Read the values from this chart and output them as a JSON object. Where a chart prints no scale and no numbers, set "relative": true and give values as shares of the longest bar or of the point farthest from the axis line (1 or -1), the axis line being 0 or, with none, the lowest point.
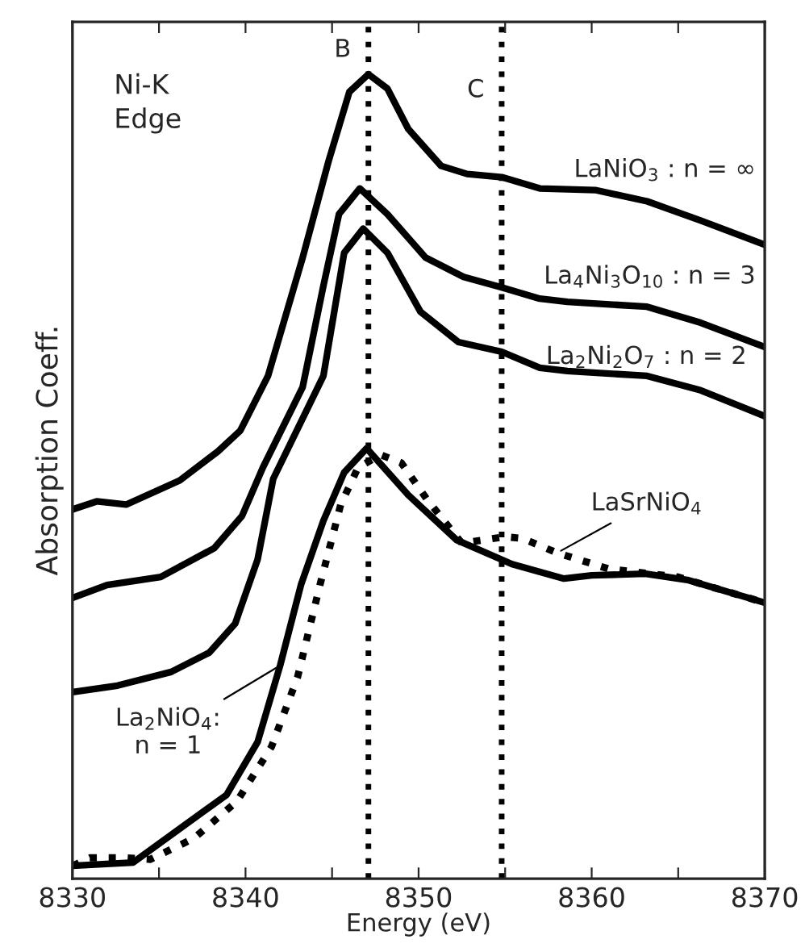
{
  "chart_data": {
    "type": "line",
    "relative": true,
    "xlabel": "Energy (eV)",
    "ylabel": "Absorption Coeff.",
    "xlim": [
      8330,
      8370
    ],
    "xticks": [
      8330,
      {
        "value": 8335,
        "label": null
      },
      8340,
      {
        "value": 8345,
        "label": null
      },
      8350,
      {
        "value": 8355,
        "label": null
      },
      8360,
      {
        "value": 8365,
        "label": null
      },
      8370
    ],
    "grid": false,
    "legend": false,
    "marker": "none",
    "annotations": [
      "Ni-K\nEdge"
    ],
    "ref_lines": [
      {
        "axis": "x",
        "value": 8347.1,
        "label": "B",
        "line_style": "dotted",
        "color": "#000000"
      },
      {
        "axis": "x",
        "value": 8354.8,
        "label": "C",
        "line_style": "dotted",
        "color": "#000000"
      }
    ],
    "series": [
      {
        "name": "LaNiO$_{3}$ : n = ∞",
        "color": "#000000",
        "line_style": "solid",
        "x": [
          8330,
          8331.4,
          8333.1,
          8336.2,
          8338.4,
          8339.7,
          8341.3,
          8343.3,
          8344.8,
          8346.0,
          8347.1,
          8348.2,
          8349.4,
          8351.3,
          8352.8,
          8354.8,
          8357,
          8360.2,
          8363.2,
          8366.3,
          8370
        ],
        "values": [
          0.459,
          0.469,
          0.465,
          0.495,
          0.531,
          0.557,
          0.625,
          0.772,
          0.892,
          0.978,
          1,
          0.982,
          0.932,
          0.886,
          0.876,
          0.872,
          0.858,
          0.856,
          0.842,
          0.818,
          0.788
        ]
      },
      {
        "name": "La$_{4}$Ni$_{3}$O$_{10}$ : n = 3",
        "color": "#000000",
        "line_style": "solid",
        "x": [
          8330,
          8332,
          8335.1,
          8338.2,
          8339.8,
          8341,
          8343.3,
          8344.5,
          8345.4,
          8346.6,
          8348.2,
          8350.4,
          8352.6,
          8354.8,
          8357,
          8358.6,
          8363.2,
          8366.3,
          8370
        ],
        "values": [
          0.349,
          0.365,
          0.375,
          0.411,
          0.451,
          0.511,
          0.611,
          0.737,
          0.826,
          0.858,
          0.826,
          0.772,
          0.748,
          0.735,
          0.721,
          0.717,
          0.711,
          0.691,
          0.661
        ]
      },
      {
        "name": "La$_{2}$Ni$_{2}$O$_{7}$ : n = 2",
        "color": "#000000",
        "line_style": "solid",
        "x": [
          8330,
          8332.6,
          8335.7,
          8337.9,
          8339.4,
          8340.7,
          8341.6,
          8344.5,
          8345.7,
          8346.8,
          8348.2,
          8350.1,
          8352.3,
          8354.8,
          8357,
          8358.6,
          8363.2,
          8366.3,
          8370
        ],
        "values": [
          0.232,
          0.24,
          0.257,
          0.281,
          0.317,
          0.397,
          0.497,
          0.625,
          0.778,
          0.808,
          0.778,
          0.705,
          0.667,
          0.655,
          0.635,
          0.631,
          0.625,
          0.607,
          0.575
        ]
      },
      {
        "name": "LaSrNiO$_{4}$",
        "color": "#000000",
        "line_style": "dotted",
        "x": [
          8330,
          8331,
          8333,
          8334.5,
          8337,
          8339.5,
          8341.5,
          8343,
          8344.3,
          8345.5,
          8346.5,
          8347.8,
          8349,
          8350.5,
          8352.5,
          8355,
          8356,
          8358,
          8361,
          8365,
          8370
        ],
        "values": [
          0.016,
          0.026,
          0.026,
          0.024,
          0.05,
          0.096,
          0.164,
          0.25,
          0.365,
          0.465,
          0.511,
          0.527,
          0.517,
          0.471,
          0.417,
          0.425,
          0.423,
          0.405,
          0.385,
          0.375,
          0.343
        ]
      },
      {
        "name": "La$_{2}$NiO$_{4}$:\nn = 1",
        "color": "#000000",
        "line_style": "solid",
        "x": [
          8330,
          8333.5,
          8336.7,
          8338.9,
          8340.7,
          8342,
          8343.2,
          8344.5,
          8345.7,
          8347,
          8349.4,
          8352.2,
          8355.4,
          8358.4,
          8360,
          8363.1,
          8365.6,
          8370
        ],
        "values": [
          0.016,
          0.02,
          0.07,
          0.104,
          0.17,
          0.265,
          0.365,
          0.445,
          0.505,
          0.535,
          0.477,
          0.421,
          0.391,
          0.373,
          0.377,
          0.379,
          0.371,
          0.343
        ]
      }
    ]
  }
}
